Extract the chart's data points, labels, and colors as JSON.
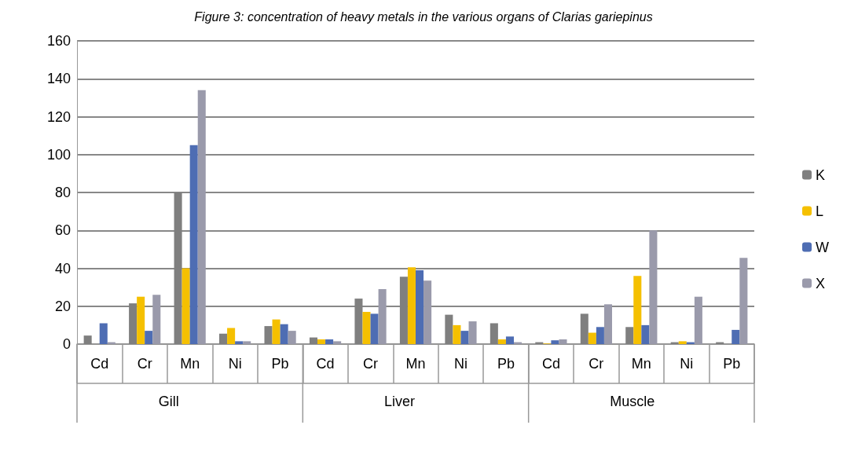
{
  "chart_data": {
    "type": "bar",
    "title": "Figure 3: concentration of heavy metals in the various organs of Clarias gariepinus",
    "categories": [
      "Cd",
      "Cr",
      "Mn",
      "Ni",
      "Pb",
      "Cd",
      "Cr",
      "Mn",
      "Ni",
      "Pb",
      "Cd",
      "Cr",
      "Mn",
      "Ni",
      "Pb"
    ],
    "annotations": [
      "Gill",
      "Liver",
      "Muscle"
    ],
    "series": [
      {
        "name": "K",
        "color": "#7f7f7f",
        "values": [
          4.5,
          21.5,
          80,
          5.5,
          9.5,
          3.5,
          24,
          35.5,
          15.5,
          11,
          1,
          16,
          9,
          1,
          1
        ]
      },
      {
        "name": "L",
        "color": "#f5c000",
        "values": [
          0,
          25,
          40,
          8.5,
          13,
          2.5,
          17,
          40.5,
          10,
          2.5,
          0.3,
          6,
          36,
          1.5,
          0
        ]
      },
      {
        "name": "W",
        "color": "#4e6db3",
        "values": [
          11,
          7,
          105,
          1.5,
          10.5,
          2.5,
          16,
          39,
          7,
          4,
          2,
          9,
          10,
          1,
          7.5
        ]
      },
      {
        "name": "X",
        "color": "#9a9aab",
        "values": [
          1,
          26,
          134,
          1.5,
          7,
          1.5,
          29,
          33.5,
          12,
          1,
          2.5,
          21,
          60,
          25,
          45.5
        ]
      }
    ],
    "ylim": [
      0,
      160
    ],
    "yticks": [
      0,
      20,
      40,
      60,
      80,
      100,
      120,
      140,
      160
    ],
    "grid": "y",
    "legend": "right"
  }
}
